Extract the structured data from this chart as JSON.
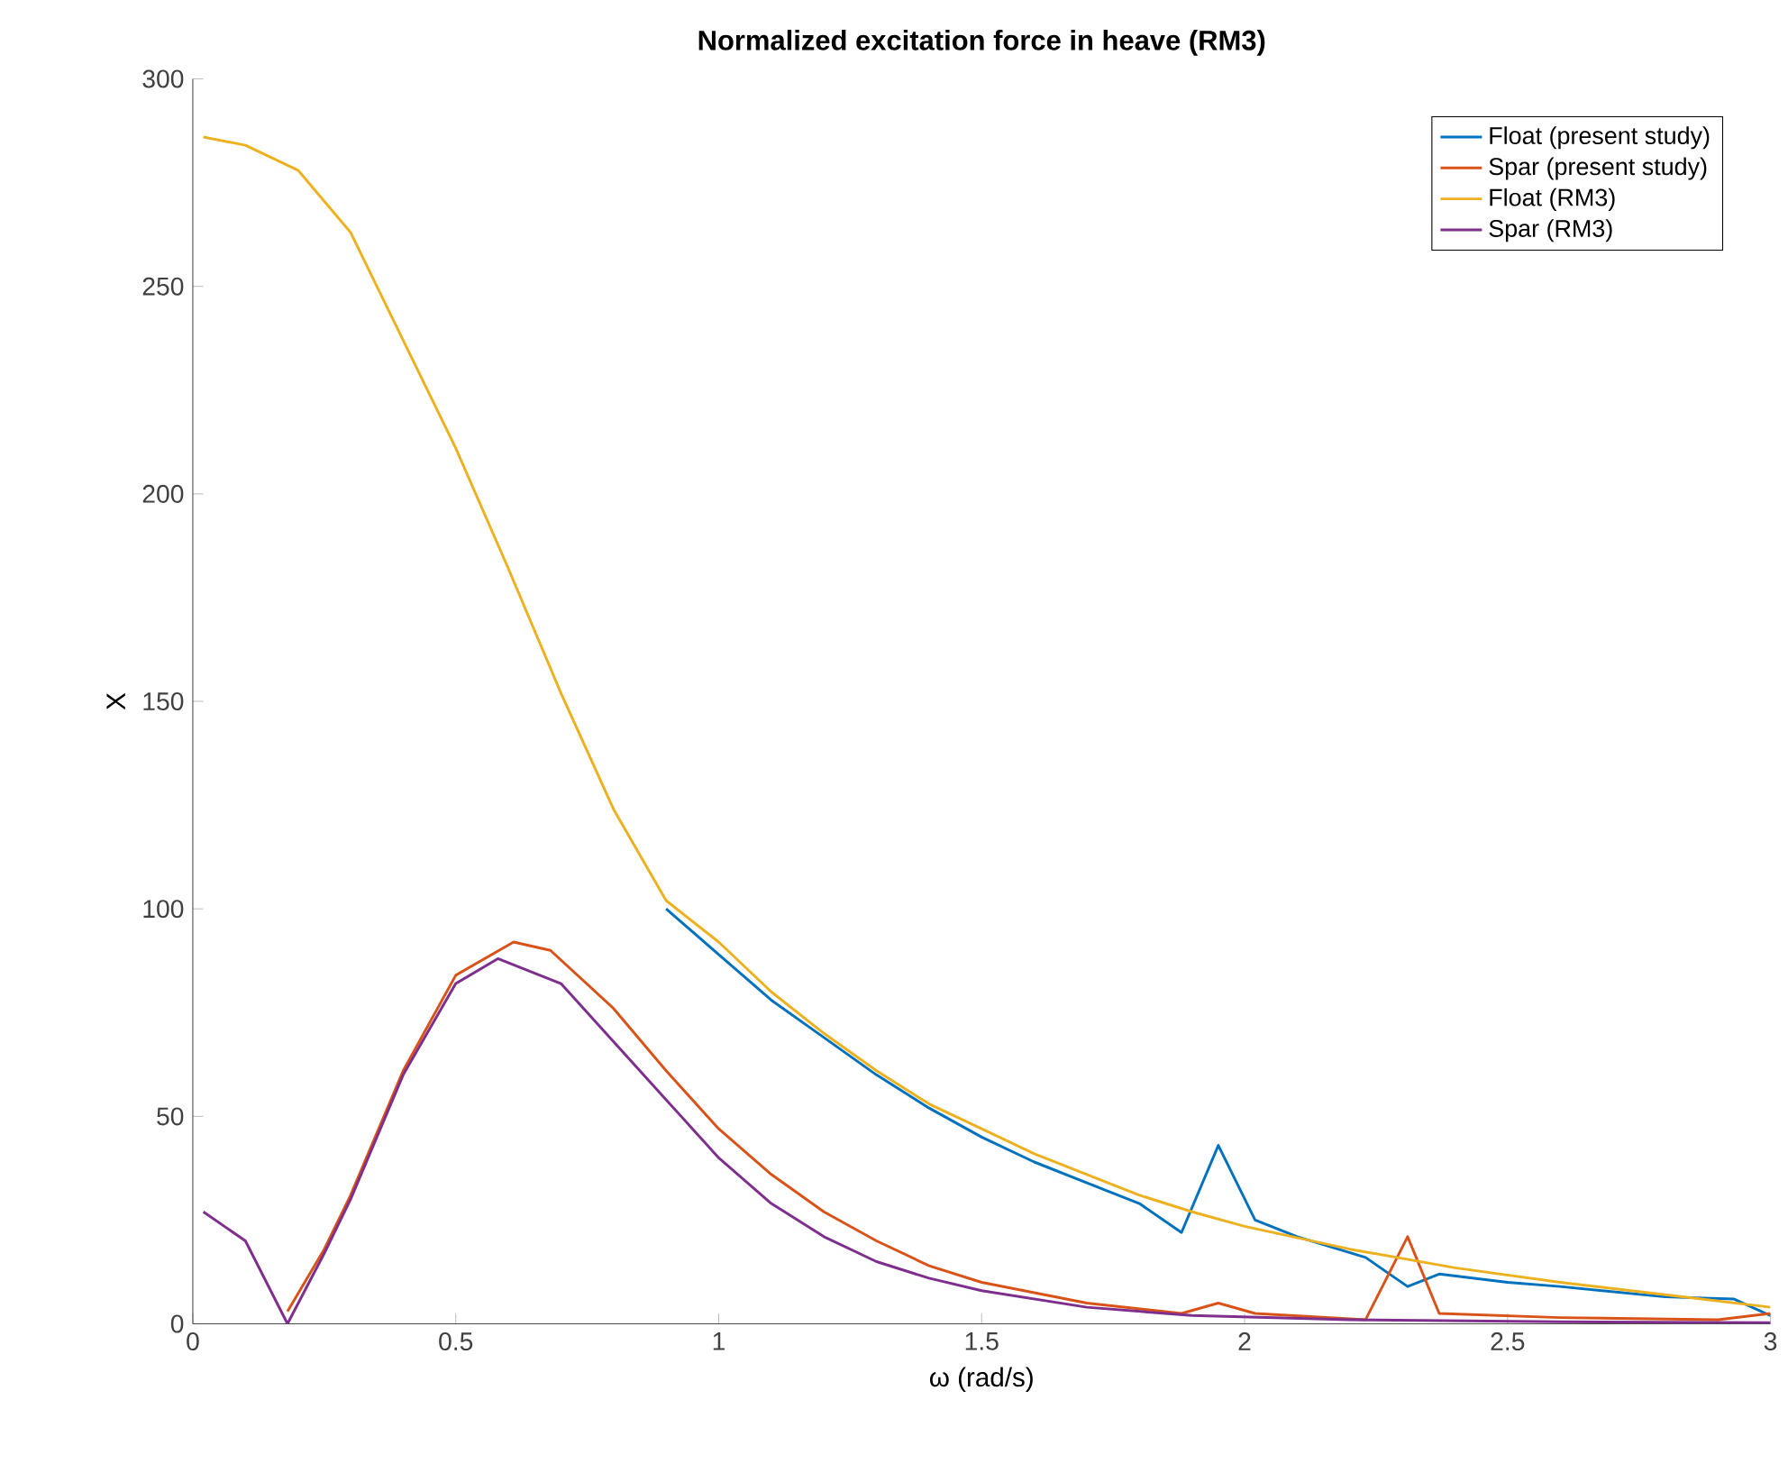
{
  "chart_data": {
    "type": "line",
    "title": "Normalized excitation force in heave (RM3)",
    "xlabel": "ω (rad/s)",
    "ylabel": "X",
    "xlim": [
      0,
      3
    ],
    "ylim": [
      0,
      300
    ],
    "xticks": [
      0,
      0.5,
      1,
      1.5,
      2,
      2.5,
      3
    ],
    "yticks": [
      0,
      50,
      100,
      150,
      200,
      250,
      300
    ],
    "grid": false,
    "legend": "top right",
    "marker": "none",
    "line_style": "solid",
    "series": [
      {
        "name": "Float (present study)",
        "color": "#0072bd",
        "x": [
          0.9,
          1.0,
          1.1,
          1.2,
          1.3,
          1.4,
          1.5,
          1.6,
          1.7,
          1.8,
          1.88,
          1.95,
          2.02,
          2.1,
          2.23,
          2.31,
          2.37,
          2.5,
          2.6,
          2.8,
          2.93,
          3.0
        ],
        "values": [
          100,
          89,
          78,
          69,
          60,
          52,
          45,
          39,
          34,
          29,
          22,
          43,
          25,
          21,
          16,
          9,
          12,
          10,
          9,
          6.5,
          6,
          2
        ]
      },
      {
        "name": "Spar (present study)",
        "color": "#d95319",
        "x": [
          0.18,
          0.25,
          0.3,
          0.4,
          0.5,
          0.61,
          0.68,
          0.8,
          0.9,
          1.0,
          1.1,
          1.2,
          1.3,
          1.4,
          1.5,
          1.7,
          1.88,
          1.95,
          2.02,
          2.23,
          2.31,
          2.37,
          2.6,
          2.9,
          3.0
        ],
        "values": [
          3,
          18,
          31,
          61,
          84,
          92,
          90,
          76,
          61,
          47,
          36,
          27,
          20,
          14,
          10,
          5,
          2.5,
          5,
          2.5,
          1,
          21,
          2.5,
          1.5,
          1,
          2.5
        ]
      },
      {
        "name": "Float (RM3)",
        "color": "#edb120",
        "x": [
          0.02,
          0.1,
          0.2,
          0.3,
          0.4,
          0.5,
          0.6,
          0.7,
          0.8,
          0.9,
          1.0,
          1.1,
          1.2,
          1.3,
          1.4,
          1.5,
          1.6,
          1.7,
          1.8,
          1.9,
          2.0,
          2.2,
          2.4,
          2.6,
          2.8,
          3.0
        ],
        "values": [
          286,
          284,
          278,
          263,
          237,
          211,
          182,
          152,
          124,
          102,
          92,
          80,
          70,
          61,
          53,
          47,
          41,
          36,
          31,
          27,
          23.5,
          18,
          13.5,
          10,
          7,
          4
        ]
      },
      {
        "name": "Spar (RM3)",
        "color": "#7e2f8e",
        "x": [
          0.02,
          0.1,
          0.18,
          0.25,
          0.3,
          0.4,
          0.5,
          0.58,
          0.7,
          0.8,
          0.9,
          1.0,
          1.1,
          1.2,
          1.3,
          1.4,
          1.5,
          1.7,
          1.9,
          2.2,
          2.6,
          3.0
        ],
        "values": [
          27,
          20,
          0,
          17,
          30,
          60,
          82,
          88,
          82,
          68,
          54,
          40,
          29,
          21,
          15,
          11,
          8,
          4,
          2,
          1,
          0.5,
          0.3
        ]
      }
    ]
  }
}
